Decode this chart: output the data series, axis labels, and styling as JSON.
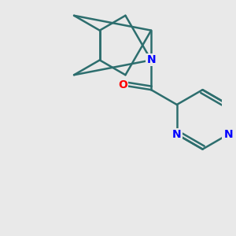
{
  "background_color": "#e9e9e9",
  "bond_color": "#2d6e6e",
  "nitrogen_color": "#0000ff",
  "oxygen_color": "#ff0000",
  "bond_width": 1.8,
  "font_size_atom": 10,
  "xlim": [
    -3.2,
    3.8
  ],
  "ylim": [
    -4.8,
    3.0
  ]
}
